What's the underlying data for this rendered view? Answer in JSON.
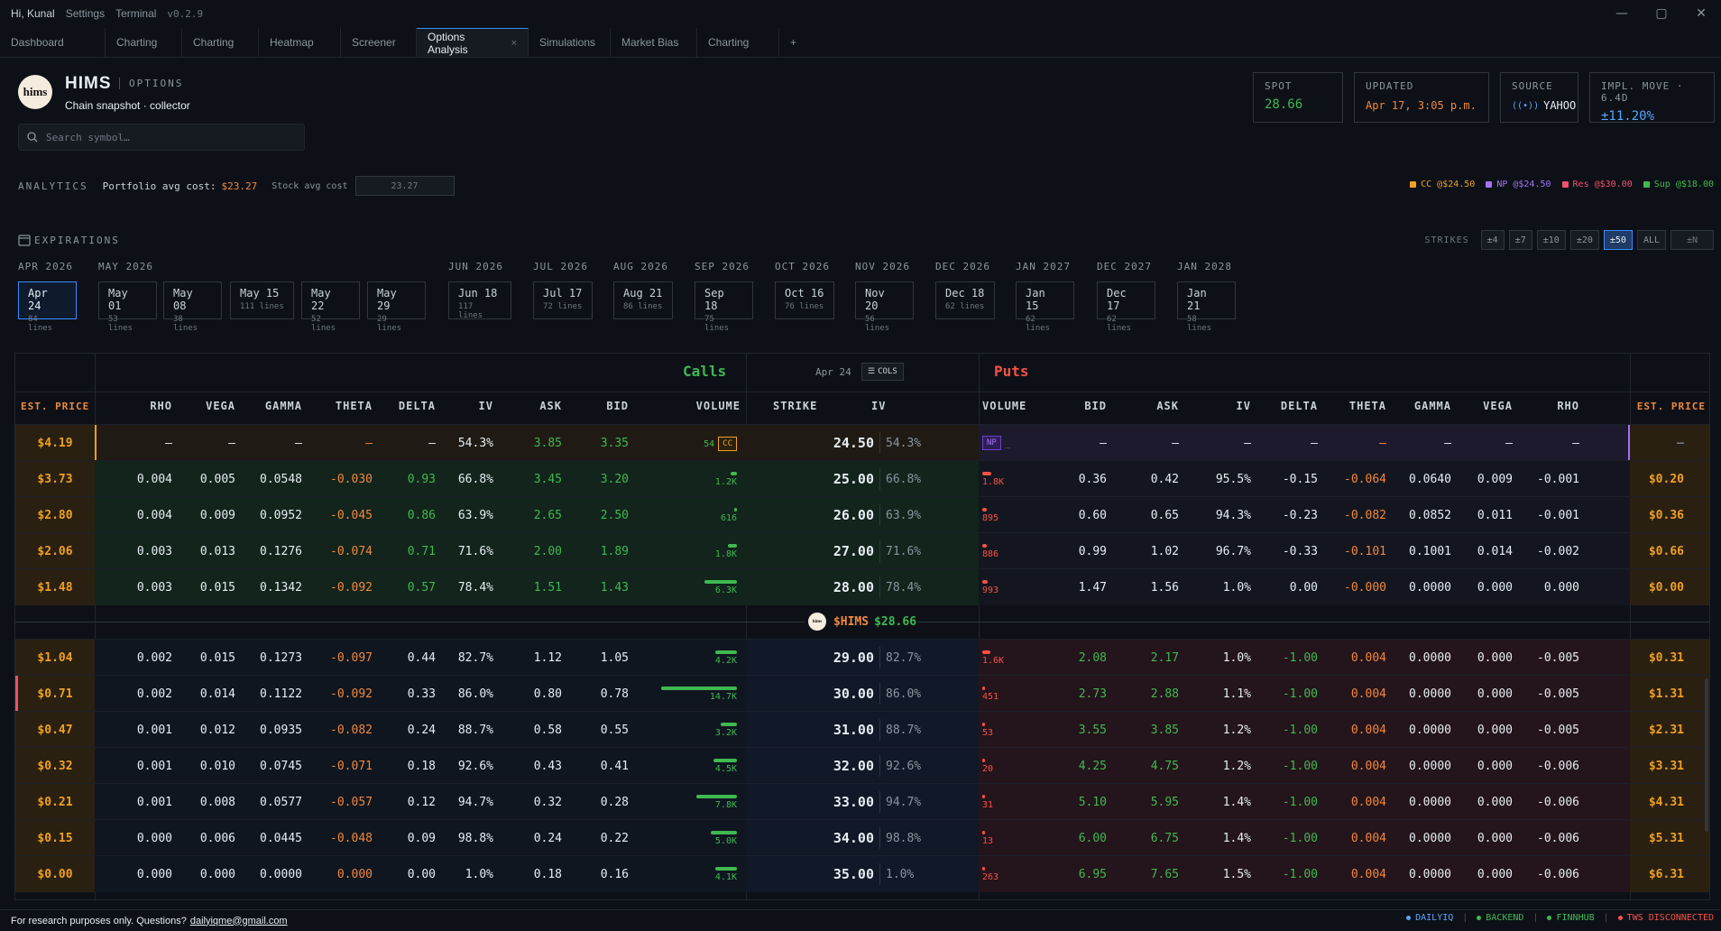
{
  "titlebar": {
    "greeting": "Hi, Kunal",
    "settings": "Settings",
    "terminal": "Terminal",
    "version": "v0.2.9"
  },
  "window_controls": {
    "minimize": "—",
    "maximize": "▢",
    "close": "✕"
  },
  "tabs": [
    {
      "label": "Dashboard"
    },
    {
      "label": "Charting"
    },
    {
      "label": "Charting"
    },
    {
      "label": "Heatmap"
    },
    {
      "label": "Screener"
    },
    {
      "label": "Options Analysis",
      "active": true
    },
    {
      "label": "Simulations"
    },
    {
      "label": "Market Bias"
    },
    {
      "label": "Charting"
    }
  ],
  "tab_close": "×",
  "tab_add": "+",
  "header": {
    "logo_text": "hims",
    "ticker": "HIMS",
    "type_label": "OPTIONS",
    "subtitle": "Chain snapshot · collector"
  },
  "search": {
    "placeholder": "Search symbol…"
  },
  "stats": {
    "spot": {
      "label": "SPOT",
      "value": "28.66",
      "color": "#3fb950"
    },
    "updated": {
      "label": "UPDATED",
      "value": "Apr 17, 3:05 p.m.",
      "color": "#f0883e"
    },
    "source": {
      "label": "SOURCE",
      "value": "YAHOO"
    },
    "impl_move": {
      "label": "IMPL. MOVE · 6.4D",
      "value": "±11.20%",
      "color": "#58a6ff"
    }
  },
  "analytics": {
    "title": "ANALYTICS",
    "portfolio_label": "Portfolio avg cost:",
    "portfolio_value": "$23.27",
    "stock_label": "Stock avg cost",
    "stock_placeholder": "23.27"
  },
  "legend": [
    {
      "label": "CC @$24.50",
      "color": "#f0a020"
    },
    {
      "label": "NP @$24.50",
      "color": "#a371f7"
    },
    {
      "label": "Res @$30.00",
      "color": "#f0506e"
    },
    {
      "label": "Sup @$18.00",
      "color": "#3fb950"
    }
  ],
  "expirations": {
    "title": "EXPIRATIONS",
    "strikes_label": "STRIKES",
    "strike_buttons": [
      {
        "label": "±4"
      },
      {
        "label": "±7"
      },
      {
        "label": "±10"
      },
      {
        "label": "±20"
      },
      {
        "label": "±50",
        "active": true
      },
      {
        "label": "ALL"
      },
      {
        "label": "±N"
      }
    ],
    "months": [
      "APR 2026",
      "MAY 2026",
      "JUN 2026",
      "JUL 2026",
      "AUG 2026",
      "SEP 2026",
      "OCT 2026",
      "NOV 2026",
      "DEC 2026",
      "JAN 2027",
      "DEC 2027",
      "JAN 2028"
    ],
    "dates": [
      {
        "date": "Apr 24",
        "lines": "84 lines",
        "active": true
      },
      {
        "date": "May 01",
        "lines": "53 lines"
      },
      {
        "date": "May 08",
        "lines": "38 lines"
      },
      {
        "date": "May 15",
        "lines": "111 lines"
      },
      {
        "date": "May 22",
        "lines": "52 lines"
      },
      {
        "date": "May 29",
        "lines": "29 lines"
      },
      {
        "date": "Jun 18",
        "lines": "117 lines"
      },
      {
        "date": "Jul 17",
        "lines": "72 lines"
      },
      {
        "date": "Aug 21",
        "lines": "86 lines"
      },
      {
        "date": "Sep 18",
        "lines": "75 lines"
      },
      {
        "date": "Oct 16",
        "lines": "76 lines"
      },
      {
        "date": "Nov 20",
        "lines": "56 lines"
      },
      {
        "date": "Dec 18",
        "lines": "62 lines"
      },
      {
        "date": "Jan 15",
        "lines": "62 lines"
      },
      {
        "date": "Dec 17",
        "lines": "62 lines"
      },
      {
        "date": "Jan 21",
        "lines": "58 lines"
      }
    ]
  },
  "chain": {
    "calls_title": "Calls",
    "puts_title": "Puts",
    "expiry_label": "Apr 24",
    "cols_button": "COLS",
    "call_headers": [
      "EST. PRICE",
      "RHO",
      "VEGA",
      "GAMMA",
      "THETA",
      "DELTA",
      "IV",
      "ASK",
      "BID",
      "VOLUME"
    ],
    "mid_headers": [
      "STRIKE",
      "IV"
    ],
    "put_headers": [
      "VOLUME",
      "BID",
      "ASK",
      "IV",
      "DELTA",
      "THETA",
      "GAMMA",
      "VEGA",
      "RHO",
      "EST. PRICE"
    ],
    "spot_marker": {
      "logo": "hims",
      "ticker": "$HIMS",
      "price": "$28.66"
    },
    "cc_badge": "CC",
    "np_badge": "NP",
    "np_dash": "_",
    "rows": [
      {
        "c_est": "$4.19",
        "c_rho": "—",
        "c_vega": "—",
        "c_gamma": "—",
        "c_theta": "—",
        "c_delta": "—",
        "c_iv": "54.3%",
        "c_ask": "3.85",
        "c_bid": "3.35",
        "c_vol": "54",
        "c_vol_frac": 0.0,
        "strike": "24.50",
        "iv": "54.3%",
        "p_vol": "",
        "p_vol_frac": 0.0,
        "p_bid": "—",
        "p_ask": "—",
        "p_iv": "—",
        "p_delta": "—",
        "p_theta": "—",
        "p_gamma": "—",
        "p_vega": "—",
        "p_rho": "—",
        "p_est": "—",
        "itm": "call",
        "cc": true,
        "np": true
      },
      {
        "c_est": "$3.73",
        "c_rho": "0.004",
        "c_vega": "0.005",
        "c_gamma": "0.0548",
        "c_theta": "-0.030",
        "c_delta": "0.93",
        "c_iv": "66.8%",
        "c_ask": "3.45",
        "c_bid": "3.20",
        "c_vol": "1.2K",
        "c_vol_frac": 0.08,
        "strike": "25.00",
        "iv": "66.8%",
        "p_vol": "1.8K",
        "p_vol_frac": 0.12,
        "p_bid": "0.36",
        "p_ask": "0.42",
        "p_iv": "95.5%",
        "p_delta": "-0.15",
        "p_theta": "-0.064",
        "p_gamma": "0.0640",
        "p_vega": "0.009",
        "p_rho": "-0.001",
        "p_est": "$0.20",
        "itm": "call"
      },
      {
        "c_est": "$2.80",
        "c_rho": "0.004",
        "c_vega": "0.009",
        "c_gamma": "0.0952",
        "c_theta": "-0.045",
        "c_delta": "0.86",
        "c_iv": "63.9%",
        "c_ask": "2.65",
        "c_bid": "2.50",
        "c_vol": "616",
        "c_vol_frac": 0.04,
        "strike": "26.00",
        "iv": "63.9%",
        "p_vol": "895",
        "p_vol_frac": 0.06,
        "p_bid": "0.60",
        "p_ask": "0.65",
        "p_iv": "94.3%",
        "p_delta": "-0.23",
        "p_theta": "-0.082",
        "p_gamma": "0.0852",
        "p_vega": "0.011",
        "p_rho": "-0.001",
        "p_est": "$0.36",
        "itm": "call"
      },
      {
        "c_est": "$2.06",
        "c_rho": "0.003",
        "c_vega": "0.013",
        "c_gamma": "0.1276",
        "c_theta": "-0.074",
        "c_delta": "0.71",
        "c_iv": "71.6%",
        "c_ask": "2.00",
        "c_bid": "1.89",
        "c_vol": "1.8K",
        "c_vol_frac": 0.12,
        "strike": "27.00",
        "iv": "71.6%",
        "p_vol": "886",
        "p_vol_frac": 0.06,
        "p_bid": "0.99",
        "p_ask": "1.02",
        "p_iv": "96.7%",
        "p_delta": "-0.33",
        "p_theta": "-0.101",
        "p_gamma": "0.1001",
        "p_vega": "0.014",
        "p_rho": "-0.002",
        "p_est": "$0.66",
        "itm": "call"
      },
      {
        "c_est": "$1.48",
        "c_rho": "0.003",
        "c_vega": "0.015",
        "c_gamma": "0.1342",
        "c_theta": "-0.092",
        "c_delta": "0.57",
        "c_iv": "78.4%",
        "c_ask": "1.51",
        "c_bid": "1.43",
        "c_vol": "6.3K",
        "c_vol_frac": 0.43,
        "strike": "28.00",
        "iv": "78.4%",
        "p_vol": "993",
        "p_vol_frac": 0.07,
        "p_bid": "1.47",
        "p_ask": "1.56",
        "p_iv": "1.0%",
        "p_delta": "0.00",
        "p_theta": "-0.000",
        "p_gamma": "0.0000",
        "p_vega": "0.000",
        "p_rho": "0.000",
        "p_est": "$0.00",
        "itm": "call"
      },
      {
        "c_est": "$1.04",
        "c_rho": "0.002",
        "c_vega": "0.015",
        "c_gamma": "0.1273",
        "c_theta": "-0.097",
        "c_delta": "0.44",
        "c_iv": "82.7%",
        "c_ask": "1.12",
        "c_bid": "1.05",
        "c_vol": "4.2K",
        "c_vol_frac": 0.29,
        "strike": "29.00",
        "iv": "82.7%",
        "p_vol": "1.6K",
        "p_vol_frac": 0.11,
        "p_bid": "2.08",
        "p_ask": "2.17",
        "p_iv": "1.0%",
        "p_delta": "-1.00",
        "p_theta": "0.004",
        "p_gamma": "0.0000",
        "p_vega": "0.000",
        "p_rho": "-0.005",
        "p_est": "$0.31",
        "itm": "put"
      },
      {
        "c_est": "$0.71",
        "c_rho": "0.002",
        "c_vega": "0.014",
        "c_gamma": "0.1122",
        "c_theta": "-0.092",
        "c_delta": "0.33",
        "c_iv": "86.0%",
        "c_ask": "0.80",
        "c_bid": "0.78",
        "c_vol": "14.7K",
        "c_vol_frac": 1.0,
        "strike": "30.00",
        "iv": "86.0%",
        "p_vol": "451",
        "p_vol_frac": 0.03,
        "p_bid": "2.73",
        "p_ask": "2.88",
        "p_iv": "1.1%",
        "p_delta": "-1.00",
        "p_theta": "0.004",
        "p_gamma": "0.0000",
        "p_vega": "0.000",
        "p_rho": "-0.005",
        "p_est": "$1.31",
        "itm": "put",
        "res": true
      },
      {
        "c_est": "$0.47",
        "c_rho": "0.001",
        "c_vega": "0.012",
        "c_gamma": "0.0935",
        "c_theta": "-0.082",
        "c_delta": "0.24",
        "c_iv": "88.7%",
        "c_ask": "0.58",
        "c_bid": "0.55",
        "c_vol": "3.2K",
        "c_vol_frac": 0.22,
        "strike": "31.00",
        "iv": "88.7%",
        "p_vol": "53",
        "p_vol_frac": 0.01,
        "p_bid": "3.55",
        "p_ask": "3.85",
        "p_iv": "1.2%",
        "p_delta": "-1.00",
        "p_theta": "0.004",
        "p_gamma": "0.0000",
        "p_vega": "0.000",
        "p_rho": "-0.005",
        "p_est": "$2.31",
        "itm": "put"
      },
      {
        "c_est": "$0.32",
        "c_rho": "0.001",
        "c_vega": "0.010",
        "c_gamma": "0.0745",
        "c_theta": "-0.071",
        "c_delta": "0.18",
        "c_iv": "92.6%",
        "c_ask": "0.43",
        "c_bid": "0.41",
        "c_vol": "4.5K",
        "c_vol_frac": 0.31,
        "strike": "32.00",
        "iv": "92.6%",
        "p_vol": "20",
        "p_vol_frac": 0.01,
        "p_bid": "4.25",
        "p_ask": "4.75",
        "p_iv": "1.2%",
        "p_delta": "-1.00",
        "p_theta": "0.004",
        "p_gamma": "0.0000",
        "p_vega": "0.000",
        "p_rho": "-0.006",
        "p_est": "$3.31",
        "itm": "put"
      },
      {
        "c_est": "$0.21",
        "c_rho": "0.001",
        "c_vega": "0.008",
        "c_gamma": "0.0577",
        "c_theta": "-0.057",
        "c_delta": "0.12",
        "c_iv": "94.7%",
        "c_ask": "0.32",
        "c_bid": "0.28",
        "c_vol": "7.8K",
        "c_vol_frac": 0.53,
        "strike": "33.00",
        "iv": "94.7%",
        "p_vol": "31",
        "p_vol_frac": 0.01,
        "p_bid": "5.10",
        "p_ask": "5.95",
        "p_iv": "1.4%",
        "p_delta": "-1.00",
        "p_theta": "0.004",
        "p_gamma": "0.0000",
        "p_vega": "0.000",
        "p_rho": "-0.006",
        "p_est": "$4.31",
        "itm": "put"
      },
      {
        "c_est": "$0.15",
        "c_rho": "0.000",
        "c_vega": "0.006",
        "c_gamma": "0.0445",
        "c_theta": "-0.048",
        "c_delta": "0.09",
        "c_iv": "98.8%",
        "c_ask": "0.24",
        "c_bid": "0.22",
        "c_vol": "5.0K",
        "c_vol_frac": 0.34,
        "strike": "34.00",
        "iv": "98.8%",
        "p_vol": "13",
        "p_vol_frac": 0.01,
        "p_bid": "6.00",
        "p_ask": "6.75",
        "p_iv": "1.4%",
        "p_delta": "-1.00",
        "p_theta": "0.004",
        "p_gamma": "0.0000",
        "p_vega": "0.000",
        "p_rho": "-0.006",
        "p_est": "$5.31",
        "itm": "put"
      },
      {
        "c_est": "$0.00",
        "c_rho": "0.000",
        "c_vega": "0.000",
        "c_gamma": "0.0000",
        "c_theta": "0.000",
        "c_delta": "0.00",
        "c_iv": "1.0%",
        "c_ask": "0.18",
        "c_bid": "0.16",
        "c_vol": "4.1K",
        "c_vol_frac": 0.28,
        "strike": "35.00",
        "iv": "1.0%",
        "p_vol": "263",
        "p_vol_frac": 0.02,
        "p_bid": "6.95",
        "p_ask": "7.65",
        "p_iv": "1.5%",
        "p_delta": "-1.00",
        "p_theta": "0.004",
        "p_gamma": "0.0000",
        "p_vega": "0.000",
        "p_rho": "-0.006",
        "p_est": "$6.31",
        "itm": "put"
      }
    ]
  },
  "footer": {
    "disclaimer": "For research purposes only. Questions?",
    "email": "dailyiqme@gmail.com",
    "status": [
      {
        "label": "DAILYIQ",
        "color": "#58a6ff"
      },
      {
        "label": "BACKEND",
        "color": "#3fb950"
      },
      {
        "label": "FINNHUB",
        "color": "#3fb950"
      },
      {
        "label": "TWS DISCONNECTED",
        "color": "#f85149"
      }
    ]
  },
  "colors": {
    "call_green": "#3fb950",
    "put_red": "#f85149",
    "orange": "#f0883e",
    "accent": "#388bfd"
  }
}
